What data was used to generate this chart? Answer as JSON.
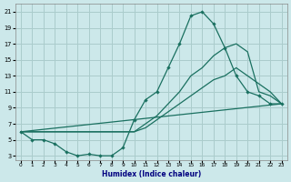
{
  "xlabel": "Humidex (Indice chaleur)",
  "bg_color": "#cce8ea",
  "grid_color": "#aacccc",
  "line_color": "#1a7060",
  "xlim": [
    -0.5,
    23.5
  ],
  "ylim": [
    2.5,
    22.0
  ],
  "xticks": [
    0,
    1,
    2,
    3,
    4,
    5,
    6,
    7,
    8,
    9,
    10,
    11,
    12,
    13,
    14,
    15,
    16,
    17,
    18,
    19,
    20,
    21,
    22,
    23
  ],
  "yticks": [
    3,
    5,
    7,
    9,
    11,
    13,
    15,
    17,
    19,
    21
  ],
  "curve1_x": [
    0,
    1,
    2,
    3,
    4,
    5,
    6,
    7,
    8,
    9,
    10,
    11,
    12,
    13,
    14,
    15,
    16,
    17,
    18,
    19,
    20,
    21,
    22,
    23
  ],
  "curve1_y": [
    6,
    5,
    5,
    4.5,
    3.5,
    3,
    3.2,
    3,
    3,
    4,
    7.5,
    10,
    11,
    14,
    17,
    20.5,
    21,
    19.5,
    16.5,
    13,
    11,
    10.5,
    9.5,
    9.5
  ],
  "curve2_x": [
    0,
    10,
    11,
    12,
    13,
    14,
    15,
    16,
    17,
    18,
    19,
    20,
    21,
    22,
    23
  ],
  "curve2_y": [
    6,
    6,
    7,
    8,
    9.5,
    11,
    13,
    14,
    15.5,
    16.5,
    17,
    16,
    11,
    10.5,
    9.5
  ],
  "curve3_x": [
    0,
    23
  ],
  "curve3_y": [
    6,
    9.5
  ],
  "curve4_x": [
    0,
    10,
    11,
    12,
    13,
    14,
    15,
    16,
    17,
    18,
    19,
    20,
    21,
    22,
    23
  ],
  "curve4_y": [
    6,
    6,
    6.5,
    7.5,
    8.5,
    9.5,
    10.5,
    11.5,
    12.5,
    13,
    14,
    13,
    12,
    11,
    9.5
  ]
}
